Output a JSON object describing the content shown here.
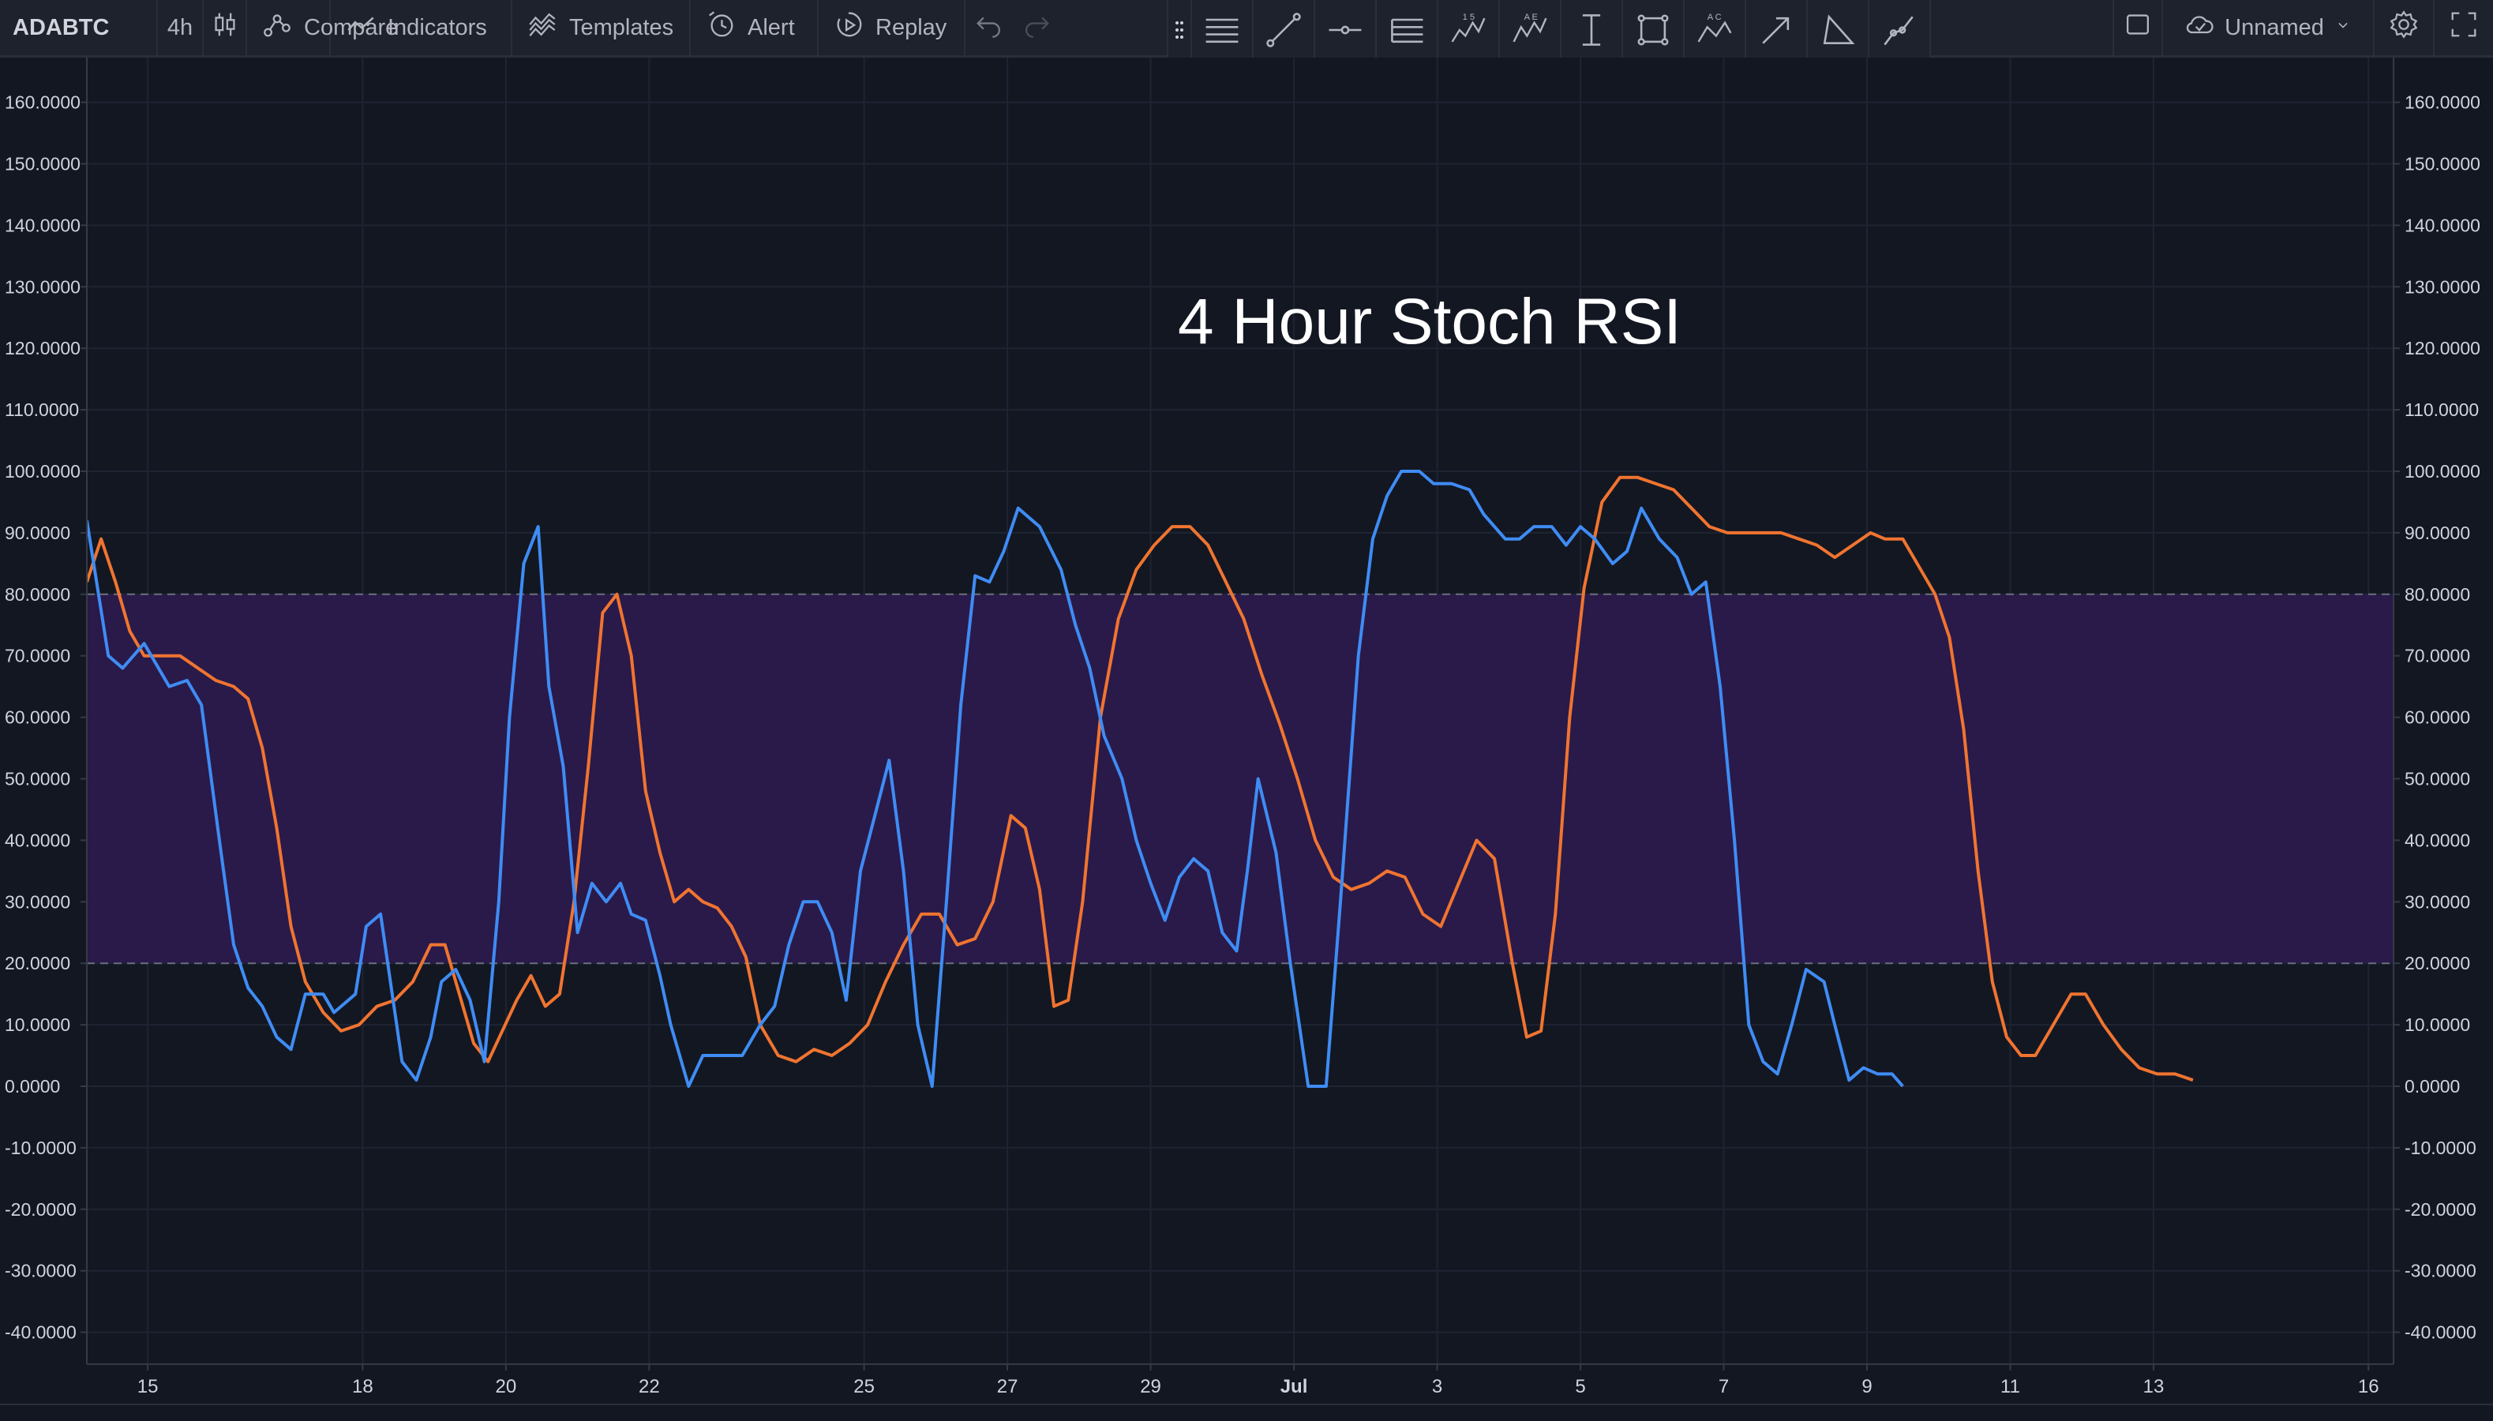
{
  "toolbar": {
    "symbol": "ADABTC",
    "interval": "4h",
    "chart_type_icon": "candlestick-icon",
    "compare_label": "Compare",
    "indicators_label": "Indicators",
    "templates_label": "Templates",
    "alert_label": "Alert",
    "replay_label": "Replay"
  },
  "drawing_tools": [
    {
      "name": "horizontal-lines-tool-icon"
    },
    {
      "name": "trend-line-tool-icon"
    },
    {
      "name": "horizontal-ray-tool-icon"
    },
    {
      "name": "pitchfork-tool-icon"
    },
    {
      "name": "elliott-wave-tool-icon",
      "glyph": "1 5"
    },
    {
      "name": "abcde-pattern-tool-icon",
      "glyph": "A E"
    },
    {
      "name": "price-range-tool-icon"
    },
    {
      "name": "rectangle-tool-icon"
    },
    {
      "name": "abc-pattern-tool-icon",
      "glyph": "A C"
    },
    {
      "name": "arrow-tool-icon"
    },
    {
      "name": "triangle-tool-icon"
    },
    {
      "name": "path-tool-icon"
    }
  ],
  "header_right": {
    "layout_name": "Unnamed"
  },
  "colors": {
    "background": "#131722",
    "grid": "#1f2433",
    "band_fill": "#2a1a4d",
    "k_line": "#3f8cf4",
    "d_line": "#f07430",
    "axis_text": "#d1d4dc"
  },
  "chart_data": {
    "type": "line",
    "annotation": "4 Hour Stoch RSI",
    "ylim": [
      -44,
      167
    ],
    "y_ticks": [
      "160.0000",
      "150.0000",
      "140.0000",
      "130.0000",
      "120.0000",
      "110.0000",
      "100.0000",
      "90.0000",
      "80.0000",
      "70.0000",
      "60.0000",
      "50.0000",
      "40.0000",
      "30.0000",
      "20.0000",
      "10.0000",
      "0.0000",
      "-10.0000",
      "-20.0000",
      "-30.0000",
      "-40.0000"
    ],
    "y_tick_values": [
      160,
      150,
      140,
      130,
      120,
      110,
      100,
      90,
      80,
      70,
      60,
      50,
      40,
      30,
      20,
      10,
      0,
      -10,
      -20,
      -30,
      -40
    ],
    "x_ticks": [
      {
        "label": "15",
        "day": 15
      },
      {
        "label": "18",
        "day": 18
      },
      {
        "label": "20",
        "day": 20
      },
      {
        "label": "22",
        "day": 22
      },
      {
        "label": "25",
        "day": 25
      },
      {
        "label": "27",
        "day": 27
      },
      {
        "label": "29",
        "day": 29
      },
      {
        "label": "Jul",
        "day": 31,
        "bold": true
      },
      {
        "label": "3",
        "day": 33
      },
      {
        "label": "5",
        "day": 35
      },
      {
        "label": "7",
        "day": 37
      },
      {
        "label": "9",
        "day": 39
      },
      {
        "label": "11",
        "day": 41
      },
      {
        "label": "13",
        "day": 43
      },
      {
        "label": "16",
        "day": 46
      }
    ],
    "x_range_days": [
      14.15,
      46.35
    ],
    "bands": {
      "upper": 80,
      "lower": 20
    },
    "series": [
      {
        "color": "#3f8cf4",
        "points": [
          [
            14.15,
            92
          ],
          [
            14.45,
            70
          ],
          [
            14.65,
            68
          ],
          [
            14.95,
            72
          ],
          [
            15.3,
            65
          ],
          [
            15.55,
            66
          ],
          [
            15.75,
            62
          ],
          [
            16.0,
            40
          ],
          [
            16.2,
            23
          ],
          [
            16.4,
            16
          ],
          [
            16.6,
            13
          ],
          [
            16.8,
            8
          ],
          [
            17.0,
            6
          ],
          [
            17.2,
            15
          ],
          [
            17.45,
            15
          ],
          [
            17.6,
            12
          ],
          [
            17.9,
            15
          ],
          [
            18.05,
            26
          ],
          [
            18.25,
            28
          ],
          [
            18.4,
            16
          ],
          [
            18.55,
            4
          ],
          [
            18.75,
            1
          ],
          [
            18.95,
            8
          ],
          [
            19.1,
            17
          ],
          [
            19.3,
            19
          ],
          [
            19.5,
            14
          ],
          [
            19.7,
            4
          ],
          [
            19.9,
            30
          ],
          [
            20.05,
            60
          ],
          [
            20.25,
            85
          ],
          [
            20.45,
            91
          ],
          [
            20.6,
            65
          ],
          [
            20.8,
            52
          ],
          [
            21.0,
            25
          ],
          [
            21.2,
            33
          ],
          [
            21.4,
            30
          ],
          [
            21.6,
            33
          ],
          [
            21.75,
            28
          ],
          [
            21.95,
            27
          ],
          [
            22.15,
            18
          ],
          [
            22.3,
            10
          ],
          [
            22.55,
            0
          ],
          [
            22.75,
            5
          ],
          [
            23.0,
            5
          ],
          [
            23.3,
            5
          ],
          [
            23.55,
            10
          ],
          [
            23.75,
            13
          ],
          [
            23.95,
            23
          ],
          [
            24.15,
            30
          ],
          [
            24.35,
            30
          ],
          [
            24.55,
            25
          ],
          [
            24.75,
            14
          ],
          [
            24.95,
            35
          ],
          [
            25.15,
            44
          ],
          [
            25.35,
            53
          ],
          [
            25.55,
            35
          ],
          [
            25.75,
            10
          ],
          [
            25.95,
            0
          ],
          [
            26.15,
            30
          ],
          [
            26.35,
            62
          ],
          [
            26.55,
            83
          ],
          [
            26.75,
            82
          ],
          [
            26.95,
            87
          ],
          [
            27.15,
            94
          ],
          [
            27.45,
            91
          ],
          [
            27.75,
            84
          ],
          [
            27.95,
            75
          ],
          [
            28.15,
            68
          ],
          [
            28.35,
            57
          ],
          [
            28.6,
            50
          ],
          [
            28.8,
            40
          ],
          [
            29.0,
            33
          ],
          [
            29.2,
            27
          ],
          [
            29.4,
            34
          ],
          [
            29.6,
            37
          ],
          [
            29.8,
            35
          ],
          [
            30.0,
            25
          ],
          [
            30.2,
            22
          ],
          [
            30.35,
            35
          ],
          [
            30.5,
            50
          ],
          [
            30.75,
            38
          ],
          [
            30.95,
            20
          ],
          [
            31.2,
            0
          ],
          [
            31.45,
            0
          ],
          [
            31.65,
            30
          ],
          [
            31.9,
            70
          ],
          [
            32.1,
            89
          ],
          [
            32.3,
            96
          ],
          [
            32.5,
            100
          ],
          [
            32.75,
            100
          ],
          [
            32.95,
            98
          ],
          [
            33.2,
            98
          ],
          [
            33.45,
            97
          ],
          [
            33.65,
            93
          ],
          [
            33.95,
            89
          ],
          [
            34.15,
            89
          ],
          [
            34.35,
            91
          ],
          [
            34.6,
            91
          ],
          [
            34.8,
            88
          ],
          [
            35.0,
            91
          ],
          [
            35.2,
            89
          ],
          [
            35.45,
            85
          ],
          [
            35.65,
            87
          ],
          [
            35.85,
            94
          ],
          [
            36.1,
            89
          ],
          [
            36.35,
            86
          ],
          [
            36.55,
            80
          ],
          [
            36.75,
            82
          ],
          [
            36.95,
            65
          ],
          [
            37.15,
            40
          ],
          [
            37.35,
            10
          ],
          [
            37.55,
            4
          ],
          [
            37.75,
            2
          ],
          [
            37.95,
            10
          ],
          [
            38.15,
            19
          ],
          [
            38.4,
            17
          ],
          [
            38.55,
            10
          ],
          [
            38.75,
            1
          ],
          [
            38.95,
            3
          ],
          [
            39.15,
            2
          ],
          [
            39.35,
            2
          ],
          [
            39.5,
            0
          ]
        ]
      },
      {
        "color": "#f07430",
        "points": [
          [
            14.15,
            82
          ],
          [
            14.35,
            89
          ],
          [
            14.55,
            82
          ],
          [
            14.75,
            74
          ],
          [
            14.95,
            70
          ],
          [
            15.2,
            70
          ],
          [
            15.45,
            70
          ],
          [
            15.7,
            68
          ],
          [
            15.95,
            66
          ],
          [
            16.2,
            65
          ],
          [
            16.4,
            63
          ],
          [
            16.6,
            55
          ],
          [
            16.8,
            42
          ],
          [
            17.0,
            26
          ],
          [
            17.2,
            17
          ],
          [
            17.45,
            12
          ],
          [
            17.7,
            9
          ],
          [
            17.95,
            10
          ],
          [
            18.2,
            13
          ],
          [
            18.45,
            14
          ],
          [
            18.7,
            17
          ],
          [
            18.95,
            23
          ],
          [
            19.15,
            23
          ],
          [
            19.35,
            15
          ],
          [
            19.55,
            7
          ],
          [
            19.75,
            4
          ],
          [
            19.95,
            9
          ],
          [
            20.15,
            14
          ],
          [
            20.35,
            18
          ],
          [
            20.55,
            13
          ],
          [
            20.75,
            15
          ],
          [
            20.95,
            30
          ],
          [
            21.15,
            52
          ],
          [
            21.35,
            77
          ],
          [
            21.55,
            80
          ],
          [
            21.75,
            70
          ],
          [
            21.95,
            48
          ],
          [
            22.15,
            38
          ],
          [
            22.35,
            30
          ],
          [
            22.55,
            32
          ],
          [
            22.75,
            30
          ],
          [
            22.95,
            29
          ],
          [
            23.15,
            26
          ],
          [
            23.35,
            21
          ],
          [
            23.55,
            10
          ],
          [
            23.8,
            5
          ],
          [
            24.05,
            4
          ],
          [
            24.3,
            6
          ],
          [
            24.55,
            5
          ],
          [
            24.8,
            7
          ],
          [
            25.05,
            10
          ],
          [
            25.3,
            17
          ],
          [
            25.55,
            23
          ],
          [
            25.8,
            28
          ],
          [
            26.05,
            28
          ],
          [
            26.3,
            23
          ],
          [
            26.55,
            24
          ],
          [
            26.8,
            30
          ],
          [
            27.05,
            44
          ],
          [
            27.25,
            42
          ],
          [
            27.45,
            32
          ],
          [
            27.65,
            13
          ],
          [
            27.85,
            14
          ],
          [
            28.05,
            30
          ],
          [
            28.3,
            60
          ],
          [
            28.55,
            76
          ],
          [
            28.8,
            84
          ],
          [
            29.05,
            88
          ],
          [
            29.3,
            91
          ],
          [
            29.55,
            91
          ],
          [
            29.8,
            88
          ],
          [
            30.05,
            82
          ],
          [
            30.3,
            76
          ],
          [
            30.55,
            67
          ],
          [
            30.8,
            59
          ],
          [
            31.05,
            50
          ],
          [
            31.3,
            40
          ],
          [
            31.55,
            34
          ],
          [
            31.8,
            32
          ],
          [
            32.05,
            33
          ],
          [
            32.3,
            35
          ],
          [
            32.55,
            34
          ],
          [
            32.8,
            28
          ],
          [
            33.05,
            26
          ],
          [
            33.3,
            33
          ],
          [
            33.55,
            40
          ],
          [
            33.8,
            37
          ],
          [
            34.05,
            20
          ],
          [
            34.25,
            8
          ],
          [
            34.45,
            9
          ],
          [
            34.65,
            28
          ],
          [
            34.85,
            60
          ],
          [
            35.05,
            81
          ],
          [
            35.3,
            95
          ],
          [
            35.55,
            99
          ],
          [
            35.8,
            99
          ],
          [
            36.05,
            98
          ],
          [
            36.3,
            97
          ],
          [
            36.55,
            94
          ],
          [
            36.8,
            91
          ],
          [
            37.05,
            90
          ],
          [
            37.3,
            90
          ],
          [
            37.55,
            90
          ],
          [
            37.8,
            90
          ],
          [
            38.05,
            89
          ],
          [
            38.3,
            88
          ],
          [
            38.55,
            86
          ],
          [
            38.8,
            88
          ],
          [
            39.05,
            90
          ],
          [
            39.25,
            89
          ],
          [
            39.5,
            89
          ],
          [
            39.75,
            84
          ],
          [
            39.95,
            80
          ],
          [
            40.15,
            73
          ],
          [
            40.35,
            58
          ],
          [
            40.55,
            35
          ],
          [
            40.75,
            17
          ],
          [
            40.95,
            8
          ],
          [
            41.15,
            5
          ],
          [
            41.35,
            5
          ],
          [
            41.6,
            10
          ],
          [
            41.85,
            15
          ],
          [
            42.05,
            15
          ],
          [
            42.3,
            10
          ],
          [
            42.55,
            6
          ],
          [
            42.8,
            3
          ],
          [
            43.05,
            2
          ],
          [
            43.3,
            2
          ],
          [
            43.55,
            1
          ]
        ]
      }
    ]
  }
}
